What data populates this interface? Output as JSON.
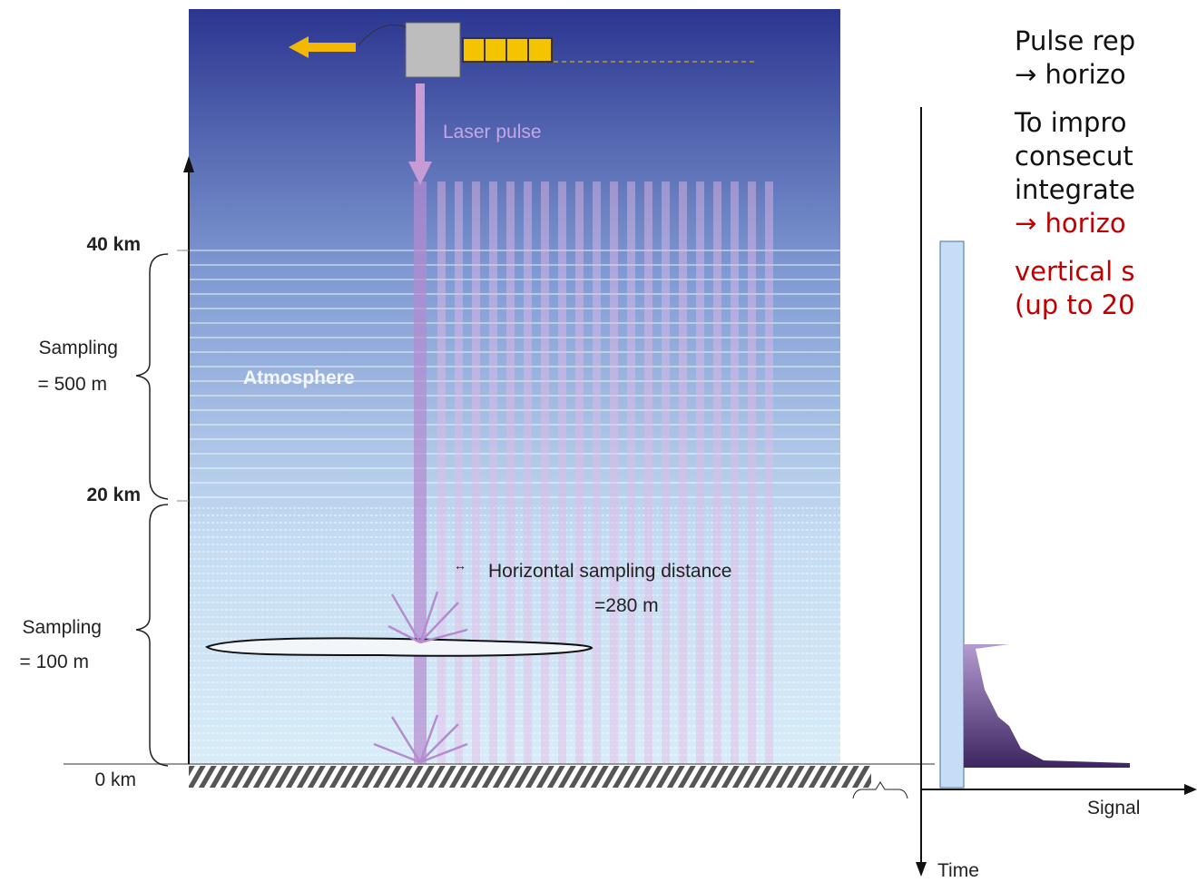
{
  "diagram": {
    "laser_label": "Laser pulse",
    "atmosphere_label": "Atmosphere",
    "altitude_labels": [
      "40 km",
      "20 km",
      "0 km"
    ],
    "sampling_upper": [
      "Sampling",
      "= 500 m"
    ],
    "sampling_lower": [
      "Sampling",
      "= 100 m"
    ],
    "horizontal_sampling": [
      "Horizontal sampling distance",
      "=280 m"
    ],
    "signal_axis": "Signal",
    "time_axis": "Time"
  },
  "text_panel": {
    "paragraphs": [
      [
        "Pulse rep",
        "→ horizo"
      ],
      [
        "To impro",
        "consecut",
        "integrate",
        "→ horizo"
      ],
      [
        "vertical s",
        "(up to 20"
      ]
    ]
  }
}
